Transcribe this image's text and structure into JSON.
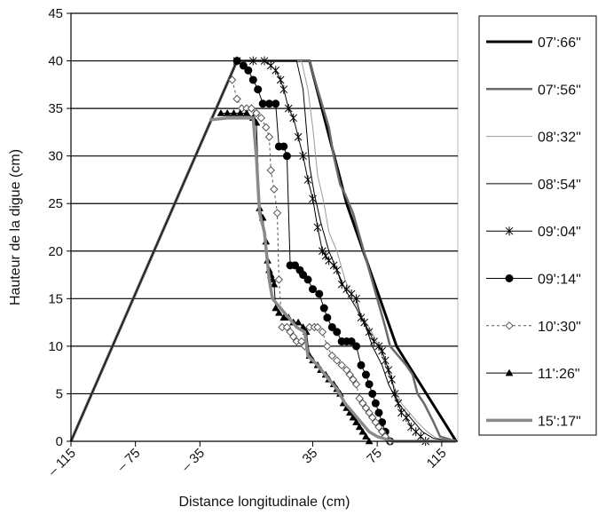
{
  "chart_data": {
    "type": "line",
    "title": "",
    "xlabel": "Distance longitudinale (cm)",
    "ylabel": "Hauteur de la digue (cm)",
    "xlim": [
      -115,
      125
    ],
    "ylim": [
      0,
      45
    ],
    "x_ticks": [
      -115,
      -75,
      -35,
      35,
      75,
      115
    ],
    "x_tick_labels": [
      "– 115",
      "– 75",
      "– 35",
      "35",
      "75",
      "115"
    ],
    "y_ticks": [
      0,
      5,
      10,
      15,
      20,
      25,
      30,
      35,
      40,
      45
    ],
    "y_tick_labels": [
      "0",
      "5",
      "10",
      "15",
      "20",
      "25",
      "30",
      "35",
      "40",
      "45"
    ],
    "grid": "horizontal",
    "legend_position": "right",
    "series": [
      {
        "name": "07':66\"",
        "color": "#000000",
        "width": 3,
        "dash": "",
        "marker": "none",
        "points": [
          [
            -115,
            0
          ],
          [
            -12,
            40
          ],
          [
            33,
            40
          ],
          [
            56,
            25
          ],
          [
            87,
            10
          ],
          [
            124,
            0
          ]
        ]
      },
      {
        "name": "07':56\"",
        "color": "#6a6a6a",
        "width": 2.5,
        "dash": "",
        "marker": "none",
        "points": [
          [
            -115,
            0
          ],
          [
            -12,
            40
          ],
          [
            33,
            40
          ],
          [
            38,
            37
          ],
          [
            45,
            33
          ],
          [
            48,
            30
          ],
          [
            52,
            27
          ],
          [
            55,
            26
          ],
          [
            60,
            24
          ],
          [
            65,
            21
          ],
          [
            70,
            18
          ],
          [
            75,
            15
          ],
          [
            80,
            12
          ],
          [
            83,
            10
          ],
          [
            88,
            9
          ],
          [
            93,
            8
          ],
          [
            97,
            7
          ],
          [
            100,
            5
          ],
          [
            104,
            4
          ],
          [
            107,
            3
          ],
          [
            110,
            2
          ],
          [
            114,
            0.5
          ],
          [
            124,
            0
          ]
        ]
      },
      {
        "name": "08':32\"",
        "color": "#9a9a9a",
        "width": 1,
        "dash": "",
        "marker": "none",
        "points": [
          [
            -115,
            0
          ],
          [
            -12,
            40
          ],
          [
            28,
            40
          ],
          [
            32,
            37
          ],
          [
            35,
            33
          ],
          [
            38,
            28
          ],
          [
            42,
            25
          ],
          [
            45,
            22
          ],
          [
            50,
            20
          ],
          [
            55,
            17
          ],
          [
            60,
            15
          ],
          [
            66,
            13
          ],
          [
            70,
            12
          ],
          [
            76,
            10
          ],
          [
            80,
            8
          ],
          [
            85,
            6
          ],
          [
            90,
            4
          ],
          [
            95,
            3
          ],
          [
            100,
            2
          ],
          [
            106,
            1
          ],
          [
            112,
            0.3
          ],
          [
            124,
            0
          ]
        ]
      },
      {
        "name": "08':54\"",
        "color": "#000000",
        "width": 1,
        "dash": "",
        "marker": "none",
        "points": [
          [
            -115,
            0
          ],
          [
            -12,
            40
          ],
          [
            25,
            40
          ],
          [
            29,
            37
          ],
          [
            31,
            33
          ],
          [
            33,
            29
          ],
          [
            36,
            26
          ],
          [
            40,
            23
          ],
          [
            45,
            20
          ],
          [
            50,
            18
          ],
          [
            55,
            16
          ],
          [
            62,
            14
          ],
          [
            68,
            12
          ],
          [
            72,
            10
          ],
          [
            78,
            8
          ],
          [
            82,
            6
          ],
          [
            88,
            4
          ],
          [
            93,
            3
          ],
          [
            98,
            2
          ],
          [
            103,
            1
          ],
          [
            110,
            0.3
          ],
          [
            124,
            0
          ]
        ]
      },
      {
        "name": "09':04\"",
        "color": "#000000",
        "width": 1,
        "dash": "",
        "marker": "star",
        "points": [
          [
            -12,
            40
          ],
          [
            -2,
            40
          ],
          [
            5,
            40
          ],
          [
            9,
            39.5
          ],
          [
            12,
            39
          ],
          [
            15,
            38
          ],
          [
            17,
            37
          ],
          [
            20,
            35
          ],
          [
            23,
            34
          ],
          [
            26,
            32
          ],
          [
            29,
            30
          ],
          [
            32,
            27.5
          ],
          [
            35,
            25.5
          ],
          [
            38,
            22.5
          ],
          [
            41,
            20
          ],
          [
            43,
            19.5
          ],
          [
            45,
            19
          ],
          [
            48,
            18.5
          ],
          [
            50,
            18
          ],
          [
            53,
            16.5
          ],
          [
            56,
            16
          ],
          [
            59,
            15.5
          ],
          [
            62,
            15
          ],
          [
            65,
            13
          ],
          [
            67,
            12.5
          ],
          [
            70,
            11.5
          ],
          [
            73,
            10.5
          ],
          [
            76,
            10
          ],
          [
            78,
            9.5
          ],
          [
            80,
            8.5
          ],
          [
            82,
            7.5
          ],
          [
            84,
            6.5
          ],
          [
            86,
            5
          ],
          [
            88,
            4
          ],
          [
            90,
            3
          ],
          [
            93,
            2.5
          ],
          [
            96,
            1.5
          ],
          [
            99,
            1
          ],
          [
            102,
            0.5
          ],
          [
            105,
            0
          ],
          [
            124,
            0
          ]
        ]
      },
      {
        "name": "09':14\"",
        "color": "#000000",
        "width": 1,
        "dash": "",
        "marker": "circle",
        "points": [
          [
            -12,
            40
          ],
          [
            -8,
            39.5
          ],
          [
            -5,
            39
          ],
          [
            -2,
            38
          ],
          [
            1,
            37
          ],
          [
            4,
            35.5
          ],
          [
            8,
            35.5
          ],
          [
            12,
            35.5
          ],
          [
            14,
            31
          ],
          [
            17,
            31
          ],
          [
            19,
            30
          ],
          [
            21,
            18.5
          ],
          [
            24,
            18.5
          ],
          [
            27,
            18
          ],
          [
            29,
            17.5
          ],
          [
            32,
            17
          ],
          [
            35,
            16
          ],
          [
            39,
            15.5
          ],
          [
            42,
            14
          ],
          [
            44,
            13
          ],
          [
            47,
            12
          ],
          [
            50,
            11.5
          ],
          [
            53,
            10.5
          ],
          [
            56,
            10.5
          ],
          [
            59,
            10.5
          ],
          [
            62,
            10
          ],
          [
            65,
            8
          ],
          [
            68,
            7
          ],
          [
            70,
            6
          ],
          [
            72,
            5
          ],
          [
            74,
            4
          ],
          [
            76,
            3
          ],
          [
            78,
            2
          ],
          [
            80,
            1
          ],
          [
            83,
            0
          ],
          [
            124,
            0
          ]
        ]
      },
      {
        "name": "10':30\"",
        "color": "#555555",
        "width": 1,
        "dash": "3,3",
        "marker": "diamond",
        "points": [
          [
            -15,
            38
          ],
          [
            -12,
            36
          ],
          [
            -9,
            35
          ],
          [
            -6,
            35
          ],
          [
            -3,
            35
          ],
          [
            0,
            34.5
          ],
          [
            3,
            34
          ],
          [
            6,
            33
          ],
          [
            8,
            32
          ],
          [
            9,
            28.5
          ],
          [
            11,
            26.5
          ],
          [
            13,
            24
          ],
          [
            14,
            17
          ],
          [
            16,
            12
          ],
          [
            19,
            12
          ],
          [
            21,
            11.5
          ],
          [
            23,
            11
          ],
          [
            25,
            10.5
          ],
          [
            28,
            10.5
          ],
          [
            30,
            10
          ],
          [
            33,
            12
          ],
          [
            36,
            12
          ],
          [
            38,
            12
          ],
          [
            41,
            11.5
          ],
          [
            44,
            10
          ],
          [
            47,
            9
          ],
          [
            50,
            8.5
          ],
          [
            53,
            8
          ],
          [
            56,
            7.5
          ],
          [
            58,
            7
          ],
          [
            60,
            6.5
          ],
          [
            62,
            6
          ],
          [
            64,
            4.5
          ],
          [
            66,
            4
          ],
          [
            68,
            3.5
          ],
          [
            70,
            3
          ],
          [
            72,
            2.5
          ],
          [
            74,
            2
          ],
          [
            76,
            1.5
          ],
          [
            78,
            1
          ],
          [
            80,
            0.5
          ],
          [
            83,
            0
          ],
          [
            124,
            0
          ]
        ]
      },
      {
        "name": "11':26\"",
        "color": "#000000",
        "width": 1,
        "dash": "",
        "marker": "triangle",
        "points": [
          [
            -22,
            34.5
          ],
          [
            -18,
            34.5
          ],
          [
            -14,
            34.5
          ],
          [
            -10,
            34.5
          ],
          [
            -6,
            34.5
          ],
          [
            -2,
            34
          ],
          [
            0,
            33.5
          ],
          [
            2,
            24.5
          ],
          [
            4,
            23.5
          ],
          [
            6,
            21
          ],
          [
            7,
            19
          ],
          [
            8,
            18
          ],
          [
            9,
            17.5
          ],
          [
            10,
            17
          ],
          [
            11,
            16.5
          ],
          [
            12,
            14
          ],
          [
            14,
            13.5
          ],
          [
            17,
            13
          ],
          [
            20,
            13
          ],
          [
            23,
            12.5
          ],
          [
            26,
            12.5
          ],
          [
            29,
            12
          ],
          [
            31,
            11.5
          ],
          [
            33,
            9
          ],
          [
            35,
            8.5
          ],
          [
            38,
            8
          ],
          [
            40,
            7.5
          ],
          [
            43,
            7
          ],
          [
            45,
            6.5
          ],
          [
            48,
            6
          ],
          [
            50,
            5.5
          ],
          [
            52,
            5
          ],
          [
            54,
            4
          ],
          [
            56,
            3.5
          ],
          [
            58,
            3
          ],
          [
            60,
            2.5
          ],
          [
            62,
            2
          ],
          [
            64,
            1.5
          ],
          [
            66,
            1
          ],
          [
            68,
            0.5
          ],
          [
            70,
            0
          ],
          [
            124,
            0
          ]
        ]
      },
      {
        "name": "15':17\"",
        "color": "#8a8a8a",
        "width": 3.5,
        "dash": "",
        "marker": "none",
        "points": [
          [
            -29,
            33.8
          ],
          [
            -18,
            34
          ],
          [
            -2,
            34
          ],
          [
            0,
            30
          ],
          [
            2,
            24
          ],
          [
            5,
            22
          ],
          [
            8,
            17
          ],
          [
            10,
            15
          ],
          [
            15,
            14
          ],
          [
            20,
            13
          ],
          [
            25,
            12
          ],
          [
            30,
            11.5
          ],
          [
            32,
            9
          ],
          [
            38,
            8
          ],
          [
            45,
            6.5
          ],
          [
            50,
            5.5
          ],
          [
            55,
            4
          ],
          [
            60,
            3
          ],
          [
            65,
            2
          ],
          [
            70,
            1
          ],
          [
            75,
            0.5
          ],
          [
            85,
            0
          ],
          [
            124,
            0
          ]
        ]
      }
    ]
  }
}
